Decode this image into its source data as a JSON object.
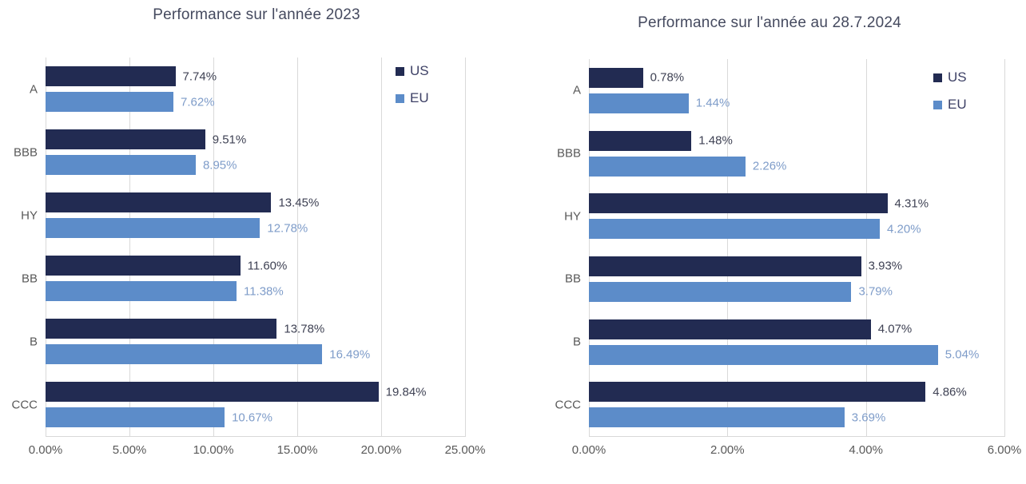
{
  "page": {
    "background": "#ffffff"
  },
  "colors": {
    "us": "#222B52",
    "eu": "#5C8CC9",
    "us_value_label": "#3F4254",
    "eu_value_label": "#7E9CC9",
    "gridline": "#D9D9D9",
    "axis_text": "#595959",
    "title_text": "#454A5F",
    "legend_text": "#3E4166"
  },
  "chart_data": [
    {
      "type": "bar",
      "orientation": "horizontal",
      "title": "Performance sur l'année 2023",
      "categories": [
        "A",
        "BBB",
        "HY",
        "BB",
        "B",
        "CCC"
      ],
      "series": [
        {
          "name": "US",
          "values": [
            7.74,
            9.51,
            13.45,
            11.6,
            13.78,
            19.84
          ],
          "labels": [
            "7.74%",
            "9.51%",
            "13.45%",
            "11.60%",
            "13.78%",
            "19.84%"
          ]
        },
        {
          "name": "EU",
          "values": [
            7.62,
            8.95,
            12.78,
            11.38,
            16.49,
            10.67
          ],
          "labels": [
            "7.62%",
            "8.95%",
            "12.78%",
            "11.38%",
            "16.49%",
            "10.67%"
          ]
        }
      ],
      "xlabel": "",
      "ylabel": "",
      "xlim": [
        0,
        25
      ],
      "tick_values": [
        0,
        5,
        10,
        15,
        20,
        25
      ],
      "ticks": [
        "0.00%",
        "5.00%",
        "10.00%",
        "15.00%",
        "20.00%",
        "25.00%"
      ],
      "grid": true,
      "legend": [
        "US",
        "EU"
      ],
      "legend_position": "top-right-inside"
    },
    {
      "type": "bar",
      "orientation": "horizontal",
      "title": "Performance sur l'année au 28.7.2024",
      "categories": [
        "A",
        "BBB",
        "HY",
        "BB",
        "B",
        "CCC"
      ],
      "series": [
        {
          "name": "US",
          "values": [
            0.78,
            1.48,
            4.31,
            3.93,
            4.07,
            4.86
          ],
          "labels": [
            "0.78%",
            "1.48%",
            "4.31%",
            "3.93%",
            "4.07%",
            "4.86%"
          ]
        },
        {
          "name": "EU",
          "values": [
            1.44,
            2.26,
            4.2,
            3.79,
            5.04,
            3.69
          ],
          "labels": [
            "1.44%",
            "2.26%",
            "4.20%",
            "3.79%",
            "5.04%",
            "3.69%"
          ]
        }
      ],
      "xlabel": "",
      "ylabel": "",
      "xlim": [
        0,
        6
      ],
      "tick_values": [
        0,
        2,
        4,
        6
      ],
      "ticks": [
        "0.00%",
        "2.00%",
        "4.00%",
        "6.00%"
      ],
      "grid": true,
      "legend": [
        "US",
        "EU"
      ],
      "legend_position": "top-right-inside"
    }
  ]
}
